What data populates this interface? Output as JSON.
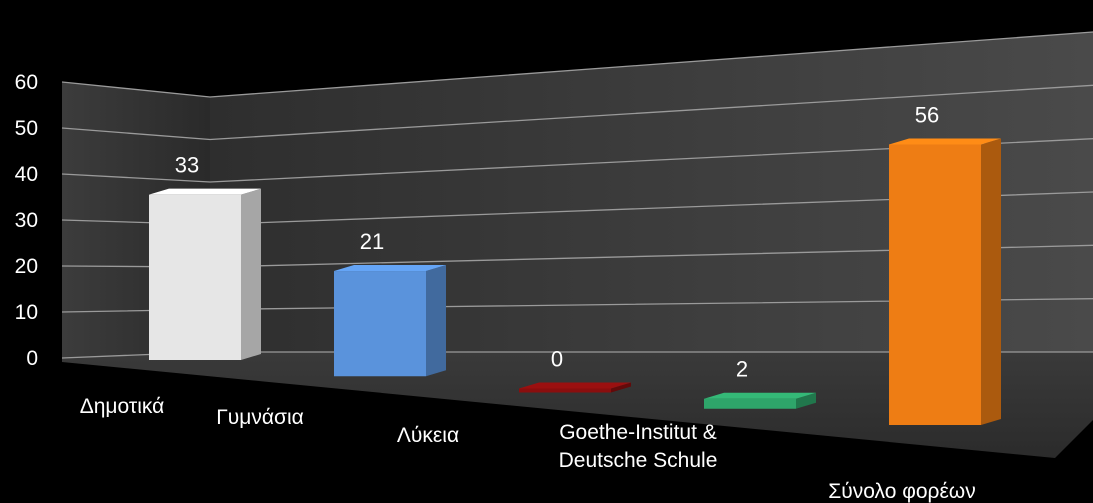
{
  "chart_data": {
    "type": "bar",
    "title": "",
    "xlabel": "",
    "ylabel": "",
    "categories": [
      "Δημοτικά",
      "Γυμνάσια",
      "Λύκεια",
      "Goethe-Institut & Deutsche Schule",
      "Σύνολο φορέων"
    ],
    "category_lines": [
      [
        "Δημοτικά"
      ],
      [
        "Γυμνάσια"
      ],
      [
        "Λύκεια"
      ],
      [
        "Goethe-Institut &",
        "Deutsche Schule"
      ],
      [
        "Σύνολο φορέων"
      ]
    ],
    "values": [
      33,
      21,
      0,
      2,
      56
    ],
    "colors": [
      "#e6e6e6",
      "#5a93dc",
      "#8a0e0e",
      "#2ea56a",
      "#ee7d14"
    ],
    "ylim": [
      0,
      60
    ],
    "yticks": [
      0,
      10,
      20,
      30,
      40,
      50,
      60
    ],
    "grid": true,
    "legend": "none",
    "style": "3d"
  }
}
